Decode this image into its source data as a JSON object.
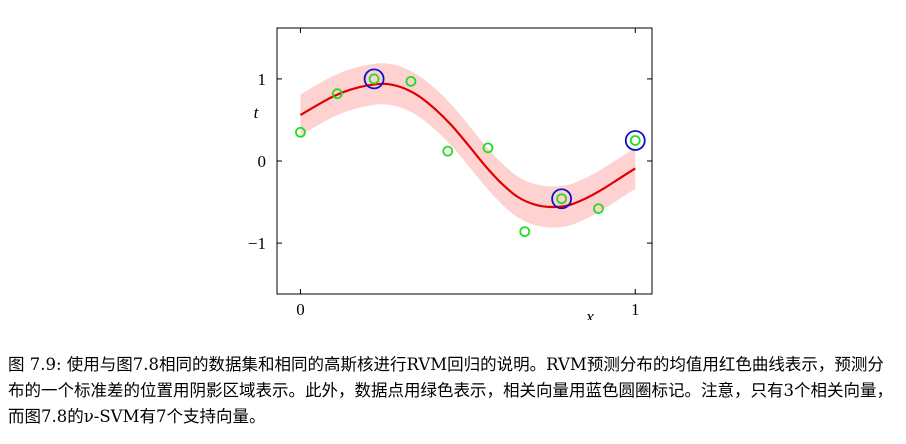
{
  "chart_data": {
    "type": "scatter",
    "xlabel": "x",
    "ylabel": "t",
    "xlim": [
      -0.07,
      1.05
    ],
    "ylim": [
      -1.62,
      1.62
    ],
    "x_ticks": [
      {
        "value": 0,
        "label": "0"
      },
      {
        "value": 1,
        "label": "1"
      }
    ],
    "y_ticks": [
      {
        "value": 1,
        "label": "1"
      },
      {
        "value": 0,
        "label": "0"
      },
      {
        "value": -1,
        "label": "−1"
      }
    ],
    "grid": false,
    "predictive_mean": {
      "color": "#e00000",
      "x": [
        0.0,
        0.05,
        0.1,
        0.15,
        0.2,
        0.25,
        0.3,
        0.35,
        0.4,
        0.45,
        0.5,
        0.55,
        0.6,
        0.65,
        0.7,
        0.75,
        0.8,
        0.85,
        0.9,
        0.95,
        1.0
      ],
      "y": [
        0.56,
        0.68,
        0.79,
        0.87,
        0.92,
        0.94,
        0.9,
        0.8,
        0.64,
        0.44,
        0.2,
        -0.05,
        -0.27,
        -0.44,
        -0.53,
        -0.56,
        -0.54,
        -0.46,
        -0.35,
        -0.22,
        -0.09
      ]
    },
    "predictive_band": {
      "color": "#ffd2d2",
      "half_width": 0.25
    },
    "data_points": {
      "color": "#22dd22",
      "x": [
        0.0,
        0.11,
        0.22,
        0.33,
        0.44,
        0.56,
        0.67,
        0.78,
        0.89,
        1.0
      ],
      "y": [
        0.35,
        0.82,
        1.0,
        0.97,
        0.12,
        0.16,
        -0.86,
        -0.46,
        -0.58,
        0.25
      ]
    },
    "relevance_vectors": {
      "color": "#1010cc",
      "x": [
        0.22,
        0.78,
        1.0
      ],
      "y": [
        1.0,
        -0.46,
        0.25
      ]
    }
  },
  "caption": {
    "text": "图 7.9: 使用与图7.8相同的数据集和相同的高斯核进行RVM回归的说明。RVM预测分布的均值用红色曲线表示，预测分布的一个标准差的位置用阴影区域表示。此外，数据点用绿色表示，相关向量用蓝色圆圈标记。注意，只有3个相关向量，而图7.8的ν-SVM有7个支持向量。"
  }
}
